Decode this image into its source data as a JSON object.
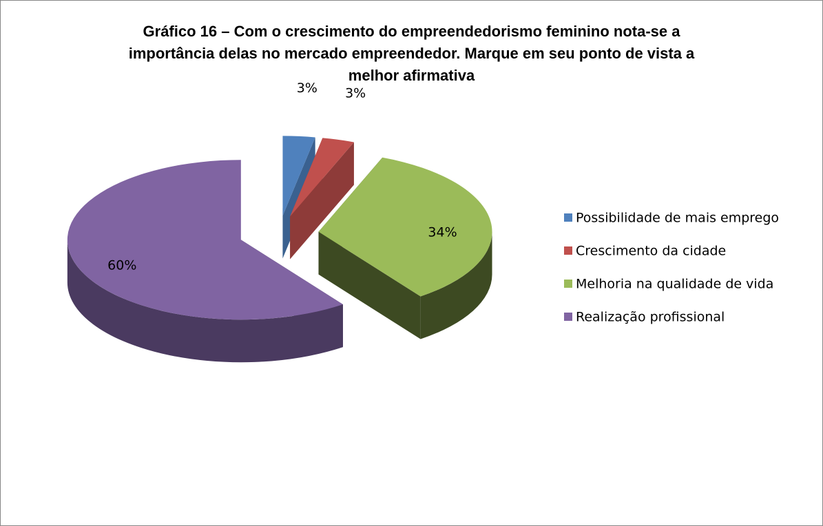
{
  "chart_data": {
    "type": "pie3d",
    "title": "Gráfico 16 – Com o crescimento do empreendedorismo feminino nota-se a importância delas no mercado empreendedor. Marque em seu ponto de vista a melhor afirmativa",
    "categories": [
      "Possibilidade de mais emprego",
      "Crescimento da cidade",
      "Melhoria na qualidade de vida",
      "Realização profissional"
    ],
    "values": [
      3,
      3,
      34,
      60
    ],
    "value_labels": [
      "3%",
      "3%",
      "34%",
      "60%"
    ],
    "colors": [
      "#4f81bd",
      "#c0504d",
      "#9bbb59",
      "#8064a2"
    ],
    "side_colors": [
      "#3a6190",
      "#8e3b39",
      "#3d4a22",
      "#4a3a60"
    ],
    "legend": "right"
  }
}
